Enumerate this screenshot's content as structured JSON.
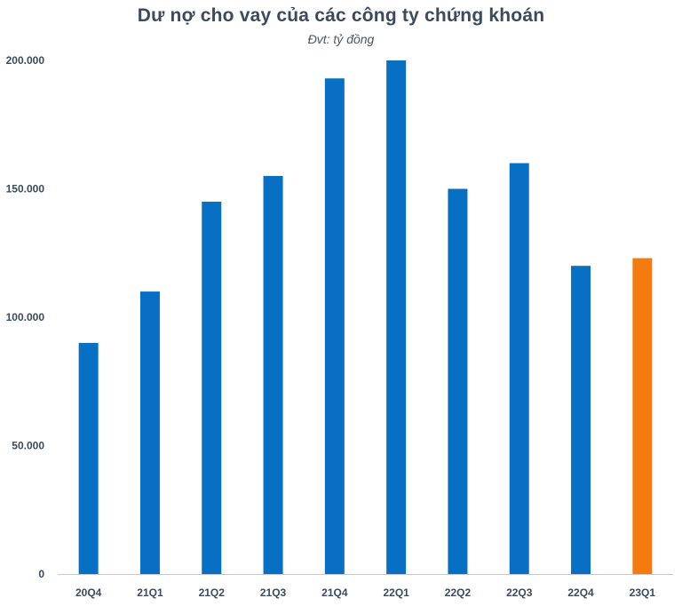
{
  "chart_data": {
    "type": "bar",
    "title": "Dư nợ cho vay của các công ty chứng khoán",
    "subtitle": "Đvt: tỷ đồng",
    "xlabel": "",
    "ylabel": "",
    "categories": [
      "20Q4",
      "21Q1",
      "21Q2",
      "21Q3",
      "21Q4",
      "22Q1",
      "22Q2",
      "22Q3",
      "22Q4",
      "23Q1"
    ],
    "values": [
      90000,
      110000,
      145000,
      155000,
      193000,
      200000,
      150000,
      160000,
      120000,
      123000
    ],
    "ylim": [
      0,
      200000
    ],
    "yticks": [
      0,
      50000,
      100000,
      150000,
      200000
    ],
    "ytick_labels": [
      "0",
      "50.000",
      "100.000",
      "150.000",
      "200.000"
    ],
    "grid": false,
    "legend": "none",
    "colors": {
      "default_bar": "#0870c4",
      "highlight_bar": "#f57a10",
      "highlight_category": "23Q1",
      "axis": "#c8c8c8",
      "text": "#3b4a5e"
    }
  }
}
